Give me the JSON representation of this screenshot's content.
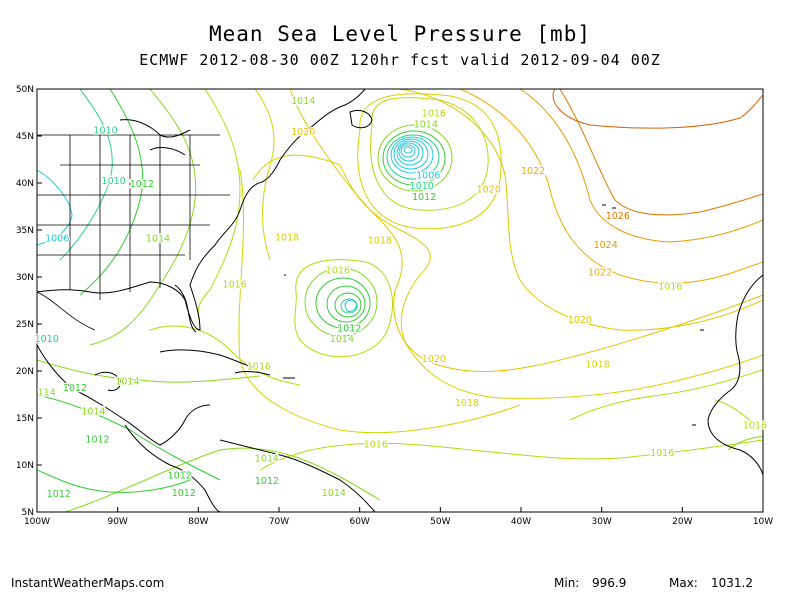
{
  "title": "Mean Sea Level Pressure [mb]",
  "subtitle": "ECMWF 2012-08-30 00Z 120hr fcst valid 2012-09-04 00Z",
  "credit": "InstantWeatherMaps.com",
  "stats": {
    "min_label": "Min:",
    "min_value": "996.9",
    "max_label": "Max:",
    "max_value": "1031.2"
  },
  "map": {
    "projection": "equirectangular",
    "lon_range": [
      -100,
      -10
    ],
    "lat_range": [
      5,
      50
    ],
    "lon_ticks": [
      "100W",
      "90W",
      "80W",
      "70W",
      "60W",
      "50W",
      "40W",
      "30W",
      "20W",
      "10W"
    ],
    "lat_ticks": [
      "5N",
      "10N",
      "15N",
      "20N",
      "25N",
      "30N",
      "35N",
      "40N",
      "45N",
      "50N"
    ],
    "contour_interval_mb": 2,
    "contour_colors": {
      "1006": "#22c8d8",
      "1008": "#22c8d8",
      "1010": "#26d48a",
      "1012": "#33cc33",
      "1014": "#88d91c",
      "1016": "#b8d90a",
      "1018": "#d4d400",
      "1020": "#e0c800",
      "1022": "#e8b000",
      "1024": "#e89a00",
      "1026": "#e07800"
    },
    "pressure_labels": [
      {
        "text": "1014",
        "lon": -67.0,
        "lat": 48.7
      },
      {
        "text": "1010",
        "lon": -91.5,
        "lat": 45.6
      },
      {
        "text": "1020",
        "lon": -67.0,
        "lat": 45.4
      },
      {
        "text": "1010",
        "lon": -90.5,
        "lat": 40.2
      },
      {
        "text": "1012",
        "lon": -87.0,
        "lat": 39.9
      },
      {
        "text": "1006",
        "lon": -97.5,
        "lat": 34.1
      },
      {
        "text": "1014",
        "lon": -85.0,
        "lat": 34.1
      },
      {
        "text": "1018",
        "lon": -69.0,
        "lat": 34.2
      },
      {
        "text": "1016",
        "lon": -75.5,
        "lat": 29.2
      },
      {
        "text": "1010",
        "lon": -98.8,
        "lat": 23.4
      },
      {
        "text": "1012",
        "lon": -95.3,
        "lat": 18.2
      },
      {
        "text": "114",
        "lon": -98.8,
        "lat": 17.7
      },
      {
        "text": "1014",
        "lon": -88.8,
        "lat": 18.9
      },
      {
        "text": "1014",
        "lon": -93.0,
        "lat": 15.7
      },
      {
        "text": "1012",
        "lon": -92.5,
        "lat": 12.7
      },
      {
        "text": "1016",
        "lon": -72.5,
        "lat": 20.5
      },
      {
        "text": "1012",
        "lon": -82.3,
        "lat": 8.9
      },
      {
        "text": "1012",
        "lon": -81.8,
        "lat": 7.0
      },
      {
        "text": "1012",
        "lon": -71.5,
        "lat": 8.3
      },
      {
        "text": "1014",
        "lon": -71.5,
        "lat": 10.7
      },
      {
        "text": "1014",
        "lon": -63.2,
        "lat": 7.0
      },
      {
        "text": "1016",
        "lon": -58.0,
        "lat": 12.2
      },
      {
        "text": "1012",
        "lon": -97.3,
        "lat": 6.9
      },
      {
        "text": "1016",
        "lon": -62.7,
        "lat": 30.7
      },
      {
        "text": "1012",
        "lon": -61.3,
        "lat": 24.5
      },
      {
        "text": "1014",
        "lon": -62.2,
        "lat": 23.4
      },
      {
        "text": "1018",
        "lon": -57.5,
        "lat": 33.9
      },
      {
        "text": "1016",
        "lon": -50.8,
        "lat": 47.4
      },
      {
        "text": "1014",
        "lon": -51.8,
        "lat": 46.2
      },
      {
        "text": "1006",
        "lon": -51.5,
        "lat": 40.8
      },
      {
        "text": "1010",
        "lon": -52.3,
        "lat": 39.7
      },
      {
        "text": "1012",
        "lon": -52.0,
        "lat": 38.5
      },
      {
        "text": "1020",
        "lon": -44.0,
        "lat": 39.3
      },
      {
        "text": "1022",
        "lon": -38.5,
        "lat": 41.3
      },
      {
        "text": "1026",
        "lon": -28.0,
        "lat": 36.5
      },
      {
        "text": "1024",
        "lon": -29.5,
        "lat": 33.4
      },
      {
        "text": "1022",
        "lon": -30.2,
        "lat": 30.5
      },
      {
        "text": "1020",
        "lon": -50.8,
        "lat": 21.3
      },
      {
        "text": "1018",
        "lon": -46.7,
        "lat": 16.6
      },
      {
        "text": "1020",
        "lon": -32.7,
        "lat": 25.4
      },
      {
        "text": "1018",
        "lon": -30.5,
        "lat": 20.7
      },
      {
        "text": "1016",
        "lon": -21.5,
        "lat": 29.0
      },
      {
        "text": "1016",
        "lon": -22.5,
        "lat": 11.3
      },
      {
        "text": "1016",
        "lon": -11.0,
        "lat": 14.2
      }
    ],
    "pressure_centers": [
      {
        "type": "low",
        "lon": -54.0,
        "lat": 43.0,
        "min_mb": 996.9
      },
      {
        "type": "low",
        "lon": -60.5,
        "lat": 26.7
      }
    ]
  }
}
